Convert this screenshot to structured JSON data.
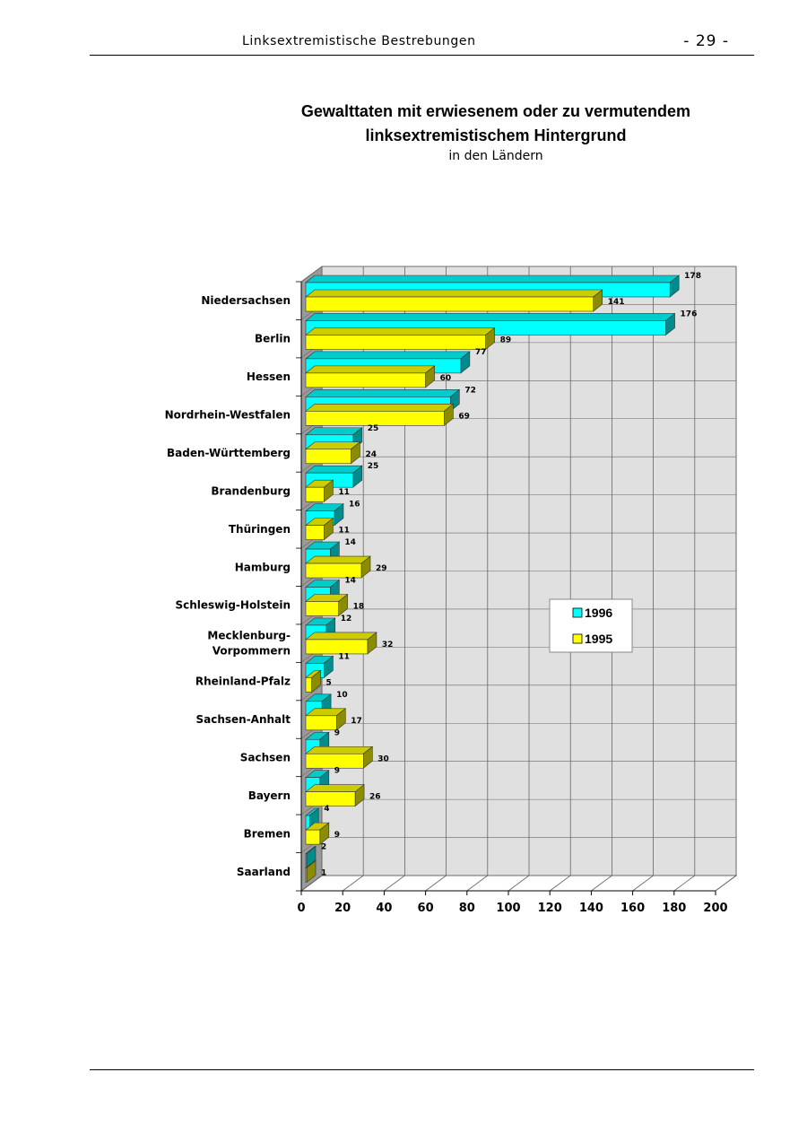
{
  "header": {
    "title": "Linksextremistische Bestrebungen",
    "page_number": "- 29 -"
  },
  "colors": {
    "series_1996": "#00FFFF",
    "series_1995": "#FFFF00",
    "plot_background": "#E0E0E0"
  },
  "chart_data": {
    "type": "bar",
    "orientation": "horizontal",
    "style": "3d",
    "title_line1": "Gewalttaten mit erwiesenem oder zu vermutendem",
    "title_line2": "linksextremistischem Hintergrund",
    "subtitle": "in den Ländern",
    "categories": [
      [
        "Niedersachsen"
      ],
      [
        "Berlin"
      ],
      [
        "Hessen"
      ],
      [
        "Nordrhein-Westfalen"
      ],
      [
        "Baden-Württemberg"
      ],
      [
        "Brandenburg"
      ],
      [
        "Thüringen"
      ],
      [
        "Hamburg"
      ],
      [
        "Schleswig-Holstein"
      ],
      [
        "Mecklenburg-",
        "Vorpommern"
      ],
      [
        "Rheinland-Pfalz"
      ],
      [
        "Sachsen-Anhalt"
      ],
      [
        "Sachsen"
      ],
      [
        "Bayern"
      ],
      [
        "Bremen"
      ],
      [
        "Saarland"
      ]
    ],
    "series": [
      {
        "name": "1996",
        "color": "#00FFFF",
        "values": [
          178,
          176,
          77,
          72,
          25,
          25,
          16,
          14,
          14,
          12,
          11,
          10,
          9,
          9,
          4,
          2
        ]
      },
      {
        "name": "1995",
        "color": "#FFFF00",
        "values": [
          141,
          89,
          60,
          69,
          24,
          11,
          11,
          29,
          18,
          32,
          5,
          17,
          30,
          26,
          9,
          1
        ]
      }
    ],
    "x_ticks": [
      "0",
      "20",
      "40",
      "60",
      "80",
      "100",
      "120",
      "140",
      "160",
      "180",
      "200"
    ],
    "xlim": [
      0,
      200
    ],
    "grid": true,
    "legend_position": "right"
  }
}
